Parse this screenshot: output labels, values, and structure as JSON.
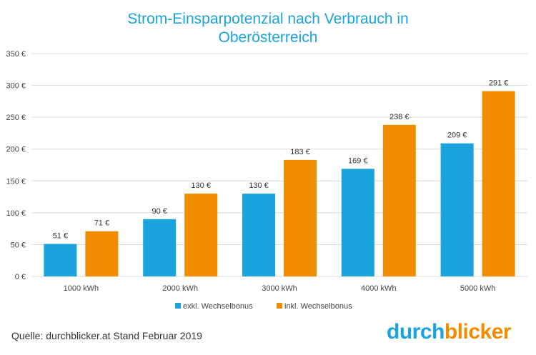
{
  "title_line1": "Strom-Einsparpotenzial  nach Verbrauch in",
  "title_line2": "Oberösterreich",
  "source": "Quelle: durchblicker.at Stand Februar 2019",
  "logo": {
    "part1": "durch",
    "part2": "blicker",
    "color1": "#1aa3dd",
    "color2": "#f28c00"
  },
  "chart_data": {
    "type": "bar",
    "categories": [
      "1000 kWh",
      "2000 kWh",
      "3000 kWh",
      "4000 kWh",
      "5000 kWh"
    ],
    "series": [
      {
        "name": "exkl. Wechselbonus",
        "color": "#1aa3dd",
        "values": [
          51,
          90,
          130,
          169,
          209
        ],
        "labels": [
          "51 €",
          "90 €",
          "130 €",
          "169 €",
          "209 €"
        ]
      },
      {
        "name": "inkl. Wechselbonus",
        "color": "#f28c00",
        "values": [
          71,
          130,
          183,
          238,
          291
        ],
        "labels": [
          "71 €",
          "130 €",
          "183 €",
          "238 €",
          "291 €"
        ]
      }
    ],
    "ylim": [
      0,
      350
    ],
    "yticks": [
      0,
      50,
      100,
      150,
      200,
      250,
      300,
      350
    ],
    "ytick_labels": [
      "0 €",
      "50 €",
      "100 €",
      "150 €",
      "200 €",
      "250 €",
      "300 €",
      "350 €"
    ],
    "grid": true,
    "legend": "bottom"
  }
}
